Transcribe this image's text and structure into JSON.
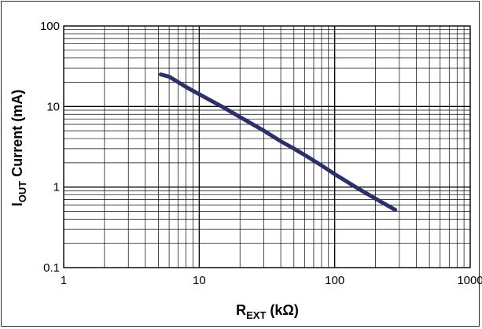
{
  "chart_data": {
    "type": "line",
    "title": "",
    "x_scale": "log",
    "y_scale": "log",
    "xlim": [
      1,
      1000
    ],
    "ylim": [
      0.1,
      100
    ],
    "grid": true,
    "x_ticks": [
      "1",
      "10",
      "100",
      "1000"
    ],
    "y_ticks": [
      "0.1",
      "1",
      "10",
      "100"
    ],
    "xlabel": {
      "main": "R",
      "sub": "EXT",
      "suffix": " (kΩ)"
    },
    "ylabel": {
      "main": "I",
      "sub": "OUT",
      "suffix": " Current (mA)"
    },
    "series": [
      {
        "color": "#2b2f6e",
        "points": [
          [
            5.2,
            25
          ],
          [
            6,
            23.5
          ],
          [
            8,
            17.5
          ],
          [
            10,
            14.2
          ],
          [
            15,
            9.8
          ],
          [
            20,
            7.4
          ],
          [
            30,
            5.0
          ],
          [
            40,
            3.7
          ],
          [
            50,
            3.0
          ],
          [
            60,
            2.5
          ],
          [
            80,
            1.85
          ],
          [
            100,
            1.45
          ],
          [
            150,
            0.95
          ],
          [
            200,
            0.72
          ],
          [
            280,
            0.52
          ]
        ]
      }
    ]
  }
}
